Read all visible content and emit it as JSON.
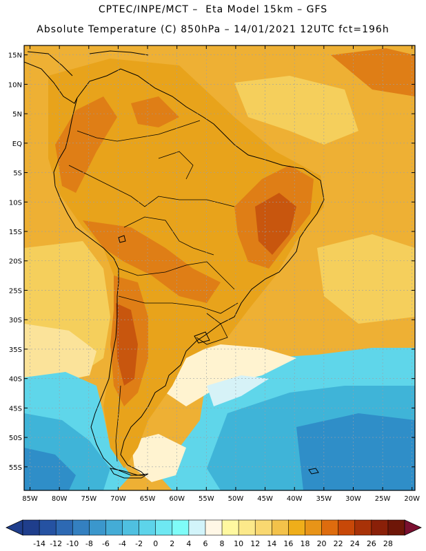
{
  "header": {
    "line1": "CPTEC/INPE/MCT –  Eta Model 15km – GFS",
    "line2": "Absolute Temperature (C) 850hPa – 14/01/2021 12UTC fct=196h"
  },
  "map": {
    "lat_labels": [
      "15N",
      "10N",
      "5N",
      "EQ",
      "5S",
      "10S",
      "15S",
      "20S",
      "25S",
      "30S",
      "35S",
      "40S",
      "45S",
      "50S",
      "55S"
    ],
    "lat_values": [
      15,
      10,
      5,
      0,
      -5,
      -10,
      -15,
      -20,
      -25,
      -30,
      -35,
      -40,
      -45,
      -50,
      -55
    ],
    "lon_labels": [
      "85W",
      "80W",
      "75W",
      "70W",
      "65W",
      "60W",
      "55W",
      "50W",
      "45W",
      "40W",
      "35W",
      "30W",
      "25W",
      "20W"
    ],
    "lon_values": [
      -85,
      -80,
      -75,
      -70,
      -65,
      -60,
      -55,
      -50,
      -45,
      -40,
      -35,
      -30,
      -25,
      -20
    ]
  },
  "colorbar": {
    "labels": [
      "-14",
      "-12",
      "-10",
      "-8",
      "-6",
      "-4",
      "-2",
      "0",
      "2",
      "4",
      "6",
      "8",
      "10",
      "12",
      "14",
      "16",
      "18",
      "20",
      "22",
      "24",
      "26",
      "28"
    ],
    "colors": [
      "#1f3e8c",
      "#2552a2",
      "#2d69b3",
      "#3480c0",
      "#3b97cc",
      "#44acd6",
      "#4fc0e0",
      "#5dd4ea",
      "#6ee8f2",
      "#7ffcf8",
      "#d2f4fa",
      "#fff7e6",
      "#fff8a0",
      "#fce98a",
      "#f9d870",
      "#f3c24a",
      "#efae1a",
      "#e89418",
      "#de6c0e",
      "#c84808",
      "#a83208",
      "#8a2008",
      "#6e1608"
    ],
    "under_color": "#1f3e8c",
    "over_color": "#7a1030"
  },
  "field_colors": {
    "hot_core": "#c8560e",
    "hot_mid": "#df7e16",
    "warm_land": "#e8a31b",
    "warm_ocean": "#eeb034",
    "mild": "#f5cf5c",
    "cool_pale": "#fff3d0",
    "cool_light": "#d6f2f7",
    "cold_cyan": "#5fd6ea",
    "colder": "#3fb4d8",
    "coldest": "#2f8ec8"
  }
}
